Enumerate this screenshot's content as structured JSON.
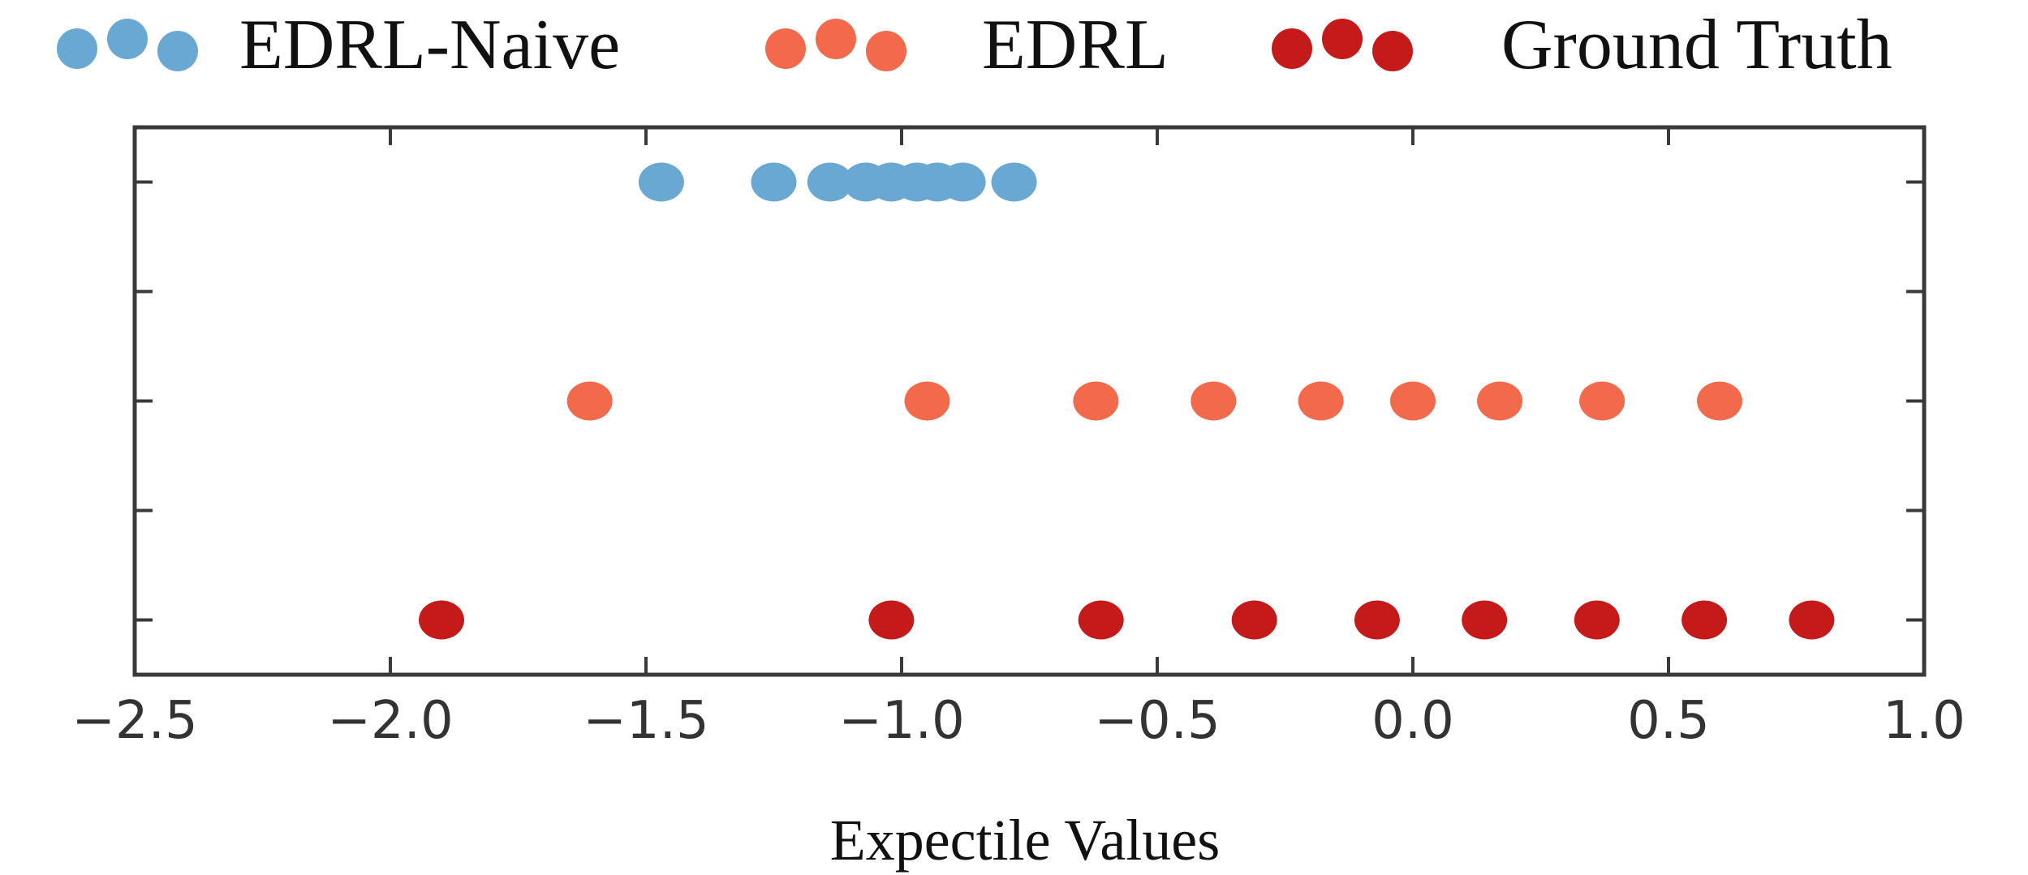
{
  "chart_data": {
    "type": "scatter",
    "title": "",
    "xlabel": "Expectile Values",
    "ylabel": "",
    "xlim": [
      -2.5,
      1.0
    ],
    "xticks": [
      "−2.5",
      "−2.0",
      "−1.5",
      "−1.0",
      "−0.5",
      "0.0",
      "0.5",
      "1.0"
    ],
    "xtick_values": [
      -2.5,
      -2.0,
      -1.5,
      -1.0,
      -0.5,
      0.0,
      0.5,
      1.0
    ],
    "ylim": [
      -0.5,
      4.5
    ],
    "ytick_values": [
      0,
      1,
      2,
      3,
      4
    ],
    "ytick_labels_shown": false,
    "grid": false,
    "legend_position": "top",
    "series": [
      {
        "name": "EDRL-Naive",
        "color": "#6aa8d4",
        "y": 4,
        "x": [
          -1.47,
          -1.25,
          -1.14,
          -1.07,
          -1.02,
          -0.97,
          -0.93,
          -0.88,
          -0.78
        ]
      },
      {
        "name": "EDRL",
        "color": "#f26a4b",
        "y": 2,
        "x": [
          -1.61,
          -0.95,
          -0.62,
          -0.39,
          -0.18,
          0.0,
          0.17,
          0.37,
          0.6
        ]
      },
      {
        "name": "Ground Truth",
        "color": "#c41a1a",
        "y": 0,
        "x": [
          -1.9,
          -1.02,
          -0.61,
          -0.31,
          -0.07,
          0.14,
          0.36,
          0.57,
          0.78
        ]
      }
    ]
  }
}
